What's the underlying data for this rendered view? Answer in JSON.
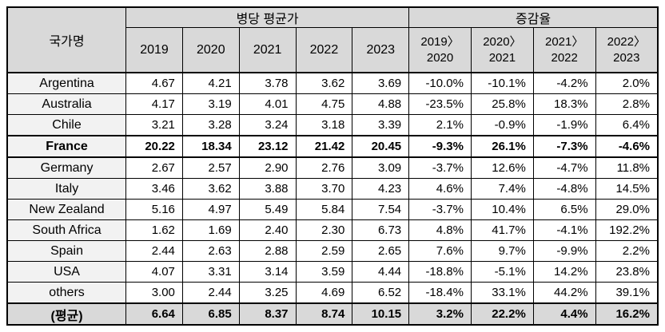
{
  "colors": {
    "header_bg": "#d9d9d9",
    "country_column_bg": "#f2f2f2",
    "summary_row_bg": "#d9d9d9",
    "border": "#000000",
    "text": "#000000",
    "cell_bg": "#ffffff"
  },
  "chart_data": {
    "type": "table",
    "header": {
      "country": "국가명",
      "groups": [
        {
          "label": "병당 평균가",
          "span": 5
        },
        {
          "label": "증감율",
          "span": 4
        }
      ],
      "price_years": [
        "2019",
        "2020",
        "2021",
        "2022",
        "2023"
      ],
      "rate_periods": [
        {
          "line1": "2019〉",
          "line2": "2020"
        },
        {
          "line1": "2020〉",
          "line2": "2021"
        },
        {
          "line1": "2021〉",
          "line2": "2022"
        },
        {
          "line1": "2022〉",
          "line2": "2023"
        }
      ]
    },
    "rows": [
      {
        "country": "Argentina",
        "prices": [
          "4.67",
          "4.21",
          "3.78",
          "3.62",
          "3.69"
        ],
        "rates": [
          "-10.0%",
          "-10.1%",
          "-4.2%",
          "2.0%"
        ],
        "emphasis": false,
        "summary": false
      },
      {
        "country": "Australia",
        "prices": [
          "4.17",
          "3.19",
          "4.01",
          "4.75",
          "4.88"
        ],
        "rates": [
          "-23.5%",
          "25.8%",
          "18.3%",
          "2.8%"
        ],
        "emphasis": false,
        "summary": false
      },
      {
        "country": "Chile",
        "prices": [
          "3.21",
          "3.28",
          "3.24",
          "3.18",
          "3.39"
        ],
        "rates": [
          "2.1%",
          "-0.9%",
          "-1.9%",
          "6.4%"
        ],
        "emphasis": false,
        "summary": false
      },
      {
        "country": "France",
        "prices": [
          "20.22",
          "18.34",
          "23.12",
          "21.42",
          "20.45"
        ],
        "rates": [
          "-9.3%",
          "26.1%",
          "-7.3%",
          "-4.6%"
        ],
        "emphasis": true,
        "summary": false
      },
      {
        "country": "Germany",
        "prices": [
          "2.67",
          "2.57",
          "2.90",
          "2.76",
          "3.09"
        ],
        "rates": [
          "-3.7%",
          "12.6%",
          "-4.7%",
          "11.8%"
        ],
        "emphasis": false,
        "summary": false
      },
      {
        "country": "Italy",
        "prices": [
          "3.46",
          "3.62",
          "3.88",
          "3.70",
          "4.23"
        ],
        "rates": [
          "4.6%",
          "7.4%",
          "-4.8%",
          "14.5%"
        ],
        "emphasis": false,
        "summary": false
      },
      {
        "country": "New Zealand",
        "prices": [
          "5.16",
          "4.97",
          "5.49",
          "5.84",
          "7.54"
        ],
        "rates": [
          "-3.7%",
          "10.4%",
          "6.5%",
          "29.0%"
        ],
        "emphasis": false,
        "summary": false
      },
      {
        "country": "South Africa",
        "prices": [
          "1.62",
          "1.69",
          "2.40",
          "2.30",
          "6.73"
        ],
        "rates": [
          "4.8%",
          "41.7%",
          "-4.1%",
          "192.2%"
        ],
        "emphasis": false,
        "summary": false
      },
      {
        "country": "Spain",
        "prices": [
          "2.44",
          "2.63",
          "2.88",
          "2.59",
          "2.65"
        ],
        "rates": [
          "7.6%",
          "9.7%",
          "-9.9%",
          "2.2%"
        ],
        "emphasis": false,
        "summary": false
      },
      {
        "country": "USA",
        "prices": [
          "4.07",
          "3.31",
          "3.14",
          "3.59",
          "4.44"
        ],
        "rates": [
          "-18.8%",
          "-5.1%",
          "14.2%",
          "23.8%"
        ],
        "emphasis": false,
        "summary": false
      },
      {
        "country": "others",
        "prices": [
          "3.00",
          "2.44",
          "3.25",
          "4.69",
          "6.52"
        ],
        "rates": [
          "-18.4%",
          "33.1%",
          "44.2%",
          "39.1%"
        ],
        "emphasis": false,
        "summary": false
      },
      {
        "country": "(평균)",
        "prices": [
          "6.64",
          "6.85",
          "8.37",
          "8.74",
          "10.15"
        ],
        "rates": [
          "3.2%",
          "22.2%",
          "4.4%",
          "16.2%"
        ],
        "emphasis": true,
        "summary": true
      }
    ]
  }
}
